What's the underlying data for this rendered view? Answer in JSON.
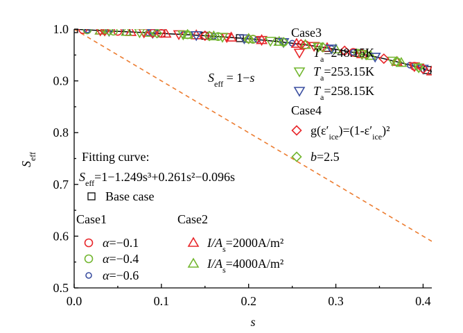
{
  "chart_data": {
    "type": "scatter",
    "xlabel": "s",
    "ylabel": "S_eff",
    "xlim": [
      0.0,
      0.41
    ],
    "ylim": [
      0.5,
      1.0
    ],
    "xticks": [
      "0.0",
      "0.1",
      "0.2",
      "0.3",
      "0.4"
    ],
    "yticks": [
      "0.5",
      "0.6",
      "0.7",
      "0.8",
      "0.9",
      "1.0"
    ],
    "grid": false,
    "reference_line": {
      "label_prefix": "S",
      "label_sub": "eff",
      "label_rest": " = 1−",
      "label_var": "s",
      "color": "#ec7c30",
      "style": "dashed"
    },
    "fit_curve": {
      "title": "Fitting curve:",
      "label_prefix": "S",
      "label_sub": "eff",
      "label_rest": "=1−1.249s³+0.261s²−0.096s",
      "coefficients": {
        "c3": -1.249,
        "c2": 0.261,
        "c1": -0.096,
        "c0": 1.0
      },
      "color": "#000000"
    },
    "legend_groups": {
      "case1": "Case1",
      "case2": "Case2",
      "case3": "Case3",
      "case4": "Case4"
    },
    "series": [
      {
        "id": "base",
        "name": "Base case",
        "group": "",
        "marker": "square",
        "color": "#000000",
        "x": [
          0.0,
          0.06,
          0.1,
          0.15,
          0.19,
          0.235,
          0.405
        ]
      },
      {
        "id": "c1a",
        "name": "α=−0.1",
        "group": "case1",
        "marker": "circle",
        "color": "#e8262a",
        "x": [
          0.01,
          0.05,
          0.1,
          0.155,
          0.205,
          0.265,
          0.32,
          0.39
        ]
      },
      {
        "id": "c1b",
        "name": "α=−0.4",
        "group": "case1",
        "marker": "circle",
        "color": "#72b62f",
        "x": [
          0.015,
          0.045,
          0.09,
          0.13,
          0.165,
          0.205,
          0.24,
          0.28,
          0.325,
          0.37
        ]
      },
      {
        "id": "c1c",
        "name": "α=−0.6",
        "group": "case1",
        "marker": "circle-small",
        "color": "#3a4ea0",
        "x": [
          0.015,
          0.035,
          0.085,
          0.125,
          0.16,
          0.21,
          0.25,
          0.295,
          0.32,
          0.385
        ]
      },
      {
        "id": "c2a",
        "name_pre": "I/A",
        "name_sub": "s",
        "name_post": "=2000A/m²",
        "group": "case2",
        "marker": "triangle-up",
        "color": "#e8262a",
        "x": [
          0.03,
          0.065,
          0.105,
          0.14,
          0.18,
          0.215,
          0.255,
          0.29,
          0.33,
          0.37,
          0.41
        ]
      },
      {
        "id": "c2b",
        "name_pre": "I/A",
        "name_sub": "s",
        "name_post": "=4000A/m²",
        "group": "case2",
        "marker": "triangle-up",
        "color": "#72b62f",
        "x": [
          0.03,
          0.06,
          0.085,
          0.13,
          0.16,
          0.2,
          0.235,
          0.265,
          0.3,
          0.34,
          0.375
        ]
      },
      {
        "id": "c3a",
        "name_pre": "T",
        "name_sub": "a",
        "name_post": "=248.15K",
        "group": "case3",
        "marker": "triangle-down",
        "color": "#e8262a",
        "x": [
          0.03,
          0.08,
          0.12,
          0.175,
          0.215,
          0.275,
          0.33,
          0.39
        ]
      },
      {
        "id": "c3b",
        "name_pre": "T",
        "name_sub": "a",
        "name_post": "=253.15K",
        "group": "case3",
        "marker": "triangle-down",
        "color": "#72b62f",
        "x": [
          0.035,
          0.075,
          0.125,
          0.17,
          0.225,
          0.28,
          0.33,
          0.365,
          0.395
        ]
      },
      {
        "id": "c3c",
        "name_pre": "T",
        "name_sub": "a",
        "name_post": "=258.15K",
        "group": "case3",
        "marker": "triangle-down",
        "color": "#3a4ea0",
        "x": [
          0.04,
          0.09,
          0.14,
          0.195,
          0.24,
          0.295,
          0.345,
          0.4
        ]
      },
      {
        "id": "c4a",
        "name_pre": "g(ε′",
        "name_sub": "ice",
        "name_post": ")=(1-ε′",
        "name_sub2": "ice",
        "name_post2": ")²",
        "group": "case4",
        "marker": "diamond",
        "color": "#e8262a",
        "x": [
          0.035,
          0.09,
          0.15,
          0.2,
          0.26,
          0.31,
          0.355,
          0.4
        ]
      },
      {
        "id": "c4b",
        "name_pre": "b",
        "name_post": "=2.5",
        "group": "case4",
        "marker": "diamond",
        "color": "#72b62f",
        "x": [
          0.04,
          0.095,
          0.155,
          0.2,
          0.24,
          0.285,
          0.335,
          0.37,
          0.395
        ]
      }
    ]
  }
}
